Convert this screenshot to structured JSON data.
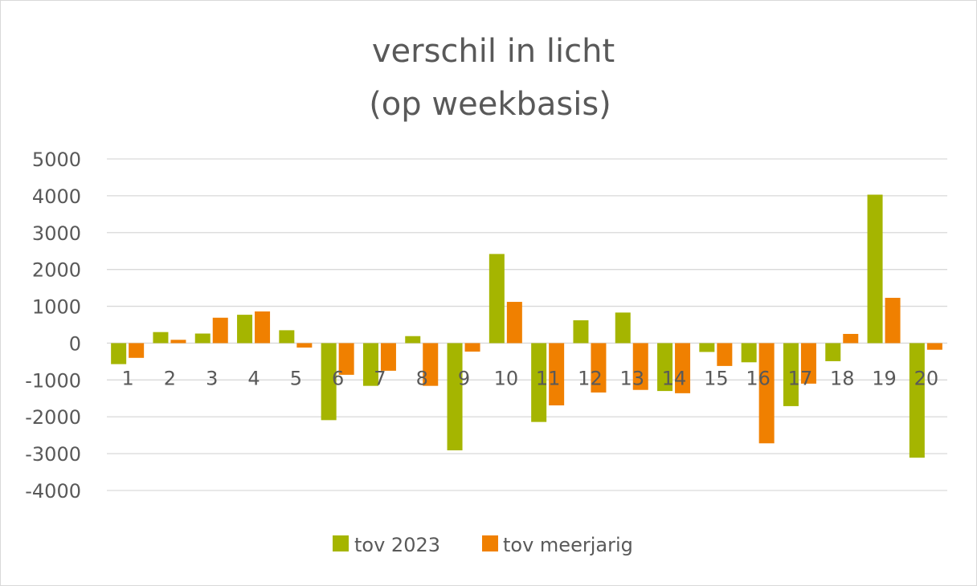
{
  "chart_data": {
    "type": "bar",
    "title": [
      "verschil in licht",
      "(op weekbasis)"
    ],
    "categories": [
      "1",
      "2",
      "3",
      "4",
      "5",
      "6",
      "7",
      "8",
      "9",
      "10",
      "11",
      "12",
      "13",
      "14",
      "15",
      "16",
      "17",
      "18",
      "19",
      "20"
    ],
    "series": [
      {
        "name": "tov 2023",
        "color": "#a5b500",
        "values": [
          -570,
          300,
          260,
          770,
          350,
          -2090,
          -1160,
          190,
          -2910,
          2420,
          -2140,
          620,
          830,
          -1300,
          -240,
          -520,
          -1710,
          -490,
          4030,
          -3110
        ]
      },
      {
        "name": "tov meerjarig",
        "color": "#f08000",
        "values": [
          -400,
          90,
          690,
          860,
          -120,
          -860,
          -750,
          -1160,
          -230,
          1120,
          -1690,
          -1340,
          -1270,
          -1360,
          -620,
          -2720,
          -1100,
          250,
          1230,
          -180
        ]
      }
    ],
    "ylim": [
      -4000,
      5000
    ],
    "yticks": [
      5000,
      4000,
      3000,
      2000,
      1000,
      0,
      -1000,
      -2000,
      -3000,
      -4000
    ],
    "grid": true,
    "legend_position": "bottom"
  }
}
